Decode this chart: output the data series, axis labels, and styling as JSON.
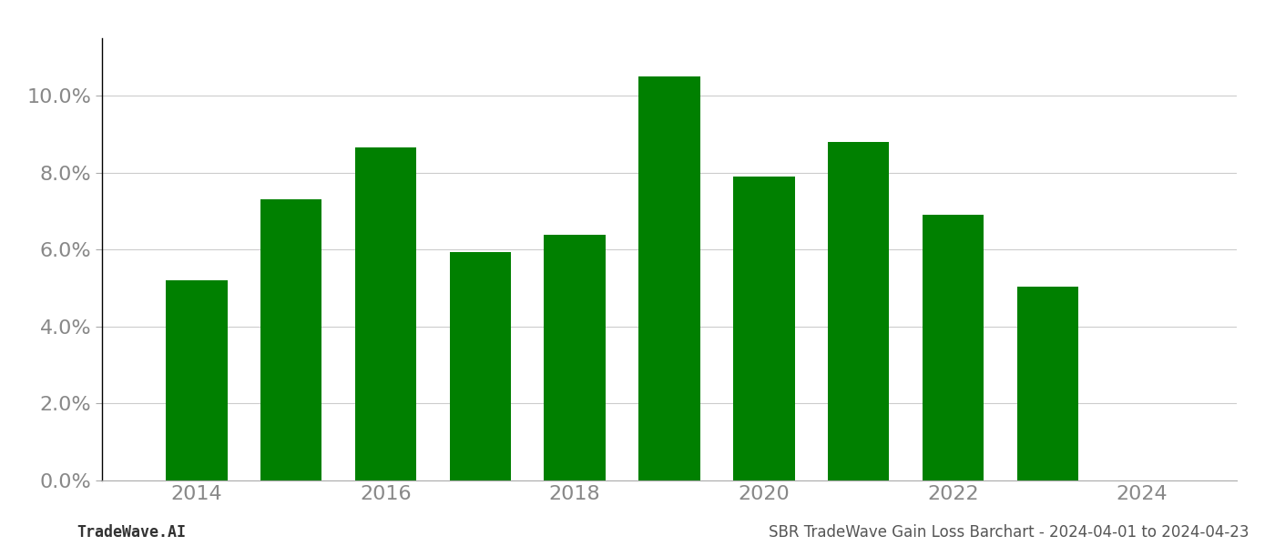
{
  "years": [
    2014,
    2015,
    2016,
    2017,
    2018,
    2019,
    2020,
    2021,
    2022,
    2023
  ],
  "values": [
    0.052,
    0.073,
    0.0865,
    0.0595,
    0.064,
    0.105,
    0.079,
    0.088,
    0.069,
    0.0505
  ],
  "bar_color": "#008000",
  "background_color": "#ffffff",
  "ylim": [
    0,
    0.115
  ],
  "yticks": [
    0.0,
    0.02,
    0.04,
    0.06,
    0.08,
    0.1
  ],
  "xticks": [
    2014,
    2016,
    2018,
    2020,
    2022,
    2024
  ],
  "xlim": [
    2013.0,
    2025.0
  ],
  "footer_left": "TradeWave.AI",
  "footer_right": "SBR TradeWave Gain Loss Barchart - 2024-04-01 to 2024-04-23",
  "grid_color": "#cccccc",
  "tick_fontsize": 16,
  "footer_fontsize": 12,
  "bar_width": 0.65
}
